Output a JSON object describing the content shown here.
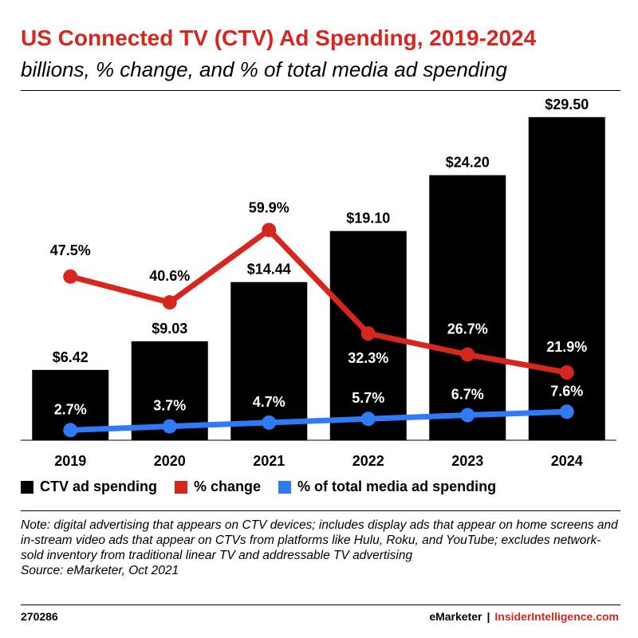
{
  "header": {
    "title": "US Connected TV (CTV) Ad Spending, 2019-2024",
    "subtitle": "billions, % change, and % of total media ad spending"
  },
  "colors": {
    "bar": "#000000",
    "change_line": "#d7261e",
    "share_line": "#2f7bf6",
    "title": "#d7261e"
  },
  "chart_data": {
    "type": "bar",
    "title": "US Connected TV (CTV) Ad Spending, 2019-2024",
    "subtitle": "billions, % change, and % of total media ad spending",
    "categories": [
      "2019",
      "2020",
      "2021",
      "2022",
      "2023",
      "2024"
    ],
    "series": [
      {
        "name": "CTV ad spending",
        "kind": "bar",
        "unit": "billions USD",
        "values": [
          6.42,
          9.03,
          14.44,
          19.1,
          24.2,
          29.5
        ],
        "labels": [
          "$6.42",
          "$9.03",
          "$14.44",
          "$19.10",
          "$24.20",
          "$29.50"
        ]
      },
      {
        "name": "% change",
        "kind": "line",
        "unit": "%",
        "values": [
          47.5,
          40.6,
          59.9,
          32.3,
          26.7,
          21.9
        ],
        "labels": [
          "47.5%",
          "40.6%",
          "59.9%",
          "32.3%",
          "26.7%",
          "21.9%"
        ]
      },
      {
        "name": "% of total media ad spending",
        "kind": "line",
        "unit": "%",
        "values": [
          2.7,
          3.7,
          4.7,
          5.7,
          6.7,
          7.6
        ],
        "labels": [
          "2.7%",
          "3.7%",
          "4.7%",
          "5.7%",
          "6.7%",
          "7.6%"
        ]
      }
    ],
    "bar_ylim": [
      0,
      30
    ],
    "change_ylim": [
      0,
      100
    ],
    "share_ylim": [
      0,
      100
    ],
    "legend_position": "bottom",
    "grid": false
  },
  "legend": {
    "items": [
      {
        "label": "CTV ad spending"
      },
      {
        "label": "% change"
      },
      {
        "label": "% of total media ad spending"
      }
    ]
  },
  "note": {
    "text": "Note: digital advertising that appears on CTV devices; includes display ads that appear on home screens and in-stream video ads that appear on CTVs from platforms like Hulu, Roku, and YouTube; excludes network-sold inventory from traditional linear TV and addressable TV advertising",
    "source": "Source: eMarketer, Oct 2021"
  },
  "footer": {
    "chart_id": "270286",
    "brand": "eMarketer",
    "separator": "|",
    "brand2": "InsiderIntelligence.com"
  }
}
